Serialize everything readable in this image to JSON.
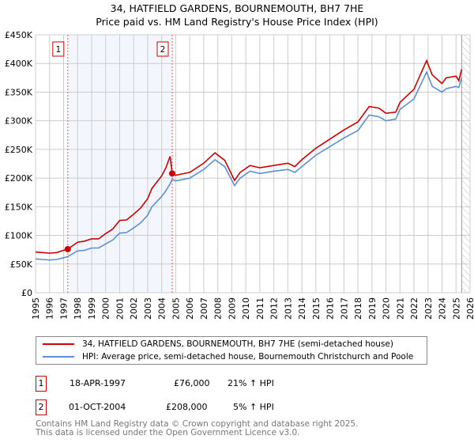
{
  "chart_data": {
    "type": "line",
    "title": "34, HATFIELD GARDENS, BOURNEMOUTH, BH7 7HE",
    "subtitle": "Price paid vs. HM Land Registry's House Price Index (HPI)",
    "xlim": [
      1995,
      2026
    ],
    "ylim": [
      0,
      450000
    ],
    "x_ticks": [
      "1995",
      "1996",
      "1997",
      "1998",
      "1999",
      "2000",
      "2001",
      "2002",
      "2003",
      "2004",
      "2005",
      "2006",
      "2007",
      "2008",
      "2009",
      "2010",
      "2011",
      "2012",
      "2013",
      "2014",
      "2015",
      "2016",
      "2017",
      "2018",
      "2019",
      "2020",
      "2021",
      "2022",
      "2023",
      "2024",
      "2025",
      "2026"
    ],
    "y_ticks": [
      {
        "v": 0,
        "label": "£0"
      },
      {
        "v": 50000,
        "label": "£50K"
      },
      {
        "v": 100000,
        "label": "£100K"
      },
      {
        "v": 150000,
        "label": "£150K"
      },
      {
        "v": 200000,
        "label": "£200K"
      },
      {
        "v": 250000,
        "label": "£250K"
      },
      {
        "v": 300000,
        "label": "£300K"
      },
      {
        "v": 350000,
        "label": "£350K"
      },
      {
        "v": 400000,
        "label": "£400K"
      },
      {
        "v": 450000,
        "label": "£450K"
      }
    ],
    "grid": true,
    "hatched_from": 2025.4,
    "series": [
      {
        "name": "34, HATFIELD GARDENS, BOURNEMOUTH, BH7 7HE (semi-detached house)",
        "color": "#cc0000",
        "x": [
          1995,
          1995.5,
          1996,
          1996.5,
          1997,
          1997.3,
          1998,
          1998.5,
          1999,
          1999.5,
          2000,
          2000.5,
          2001,
          2001.5,
          2002,
          2002.5,
          2003,
          2003.3,
          2004,
          2004.3,
          2004.6,
          2004.75,
          2005,
          2006,
          2007,
          2007.8,
          2008.5,
          2009.2,
          2009.6,
          2010.3,
          2011,
          2012,
          2013,
          2013.5,
          2014,
          2015,
          2016,
          2017,
          2018,
          2018.8,
          2019.5,
          2020,
          2020.7,
          2021,
          2022,
          2022.9,
          2023.3,
          2024,
          2024.3,
          2025,
          2025.2,
          2025.4
        ],
        "y": [
          71,
          70,
          69,
          70,
          74,
          76,
          88,
          90,
          94,
          94,
          103,
          111,
          126,
          127,
          137,
          148,
          164,
          182,
          204,
          218,
          238,
          208,
          205,
          210,
          226,
          244,
          231,
          196,
          210,
          222,
          218,
          222,
          226,
          220,
          232,
          252,
          268,
          284,
          298,
          325,
          322,
          313,
          315,
          332,
          355,
          405,
          380,
          365,
          375,
          378,
          370,
          390
        ]
      },
      {
        "name": "HPI: Average price, semi-detached house, Bournemouth Christchurch and Poole",
        "color": "#5b8fd6",
        "x": [
          1995,
          1995.5,
          1996,
          1996.5,
          1997,
          1997.3,
          1998,
          1998.5,
          1999,
          1999.5,
          2000,
          2000.5,
          2001,
          2001.5,
          2002,
          2002.5,
          2003,
          2003.3,
          2004,
          2004.3,
          2004.6,
          2004.75,
          2005,
          2006,
          2007,
          2007.8,
          2008.5,
          2009.2,
          2009.6,
          2010.3,
          2011,
          2012,
          2013,
          2013.5,
          2014,
          2015,
          2016,
          2017,
          2018,
          2018.8,
          2019.5,
          2020,
          2020.7,
          2021,
          2022,
          2022.9,
          2023.3,
          2024,
          2024.3,
          2025,
          2025.2,
          2025.4
        ],
        "y": [
          59,
          58,
          57,
          58,
          61,
          63,
          73,
          74,
          78,
          78,
          85,
          92,
          104,
          105,
          113,
          122,
          135,
          150,
          168,
          178,
          190,
          198,
          195,
          200,
          215,
          232,
          220,
          187,
          200,
          212,
          208,
          212,
          215,
          210,
          220,
          240,
          255,
          270,
          283,
          310,
          307,
          300,
          303,
          320,
          338,
          385,
          360,
          350,
          356,
          360,
          358,
          375
        ]
      }
    ],
    "y_unit": "thousands",
    "sales": [
      {
        "label": "1",
        "x": 1997.3,
        "price": 76000
      },
      {
        "label": "2",
        "x": 2004.75,
        "price": 208000
      }
    ]
  },
  "sales_table": [
    {
      "num": "1",
      "date": "18-APR-1997",
      "price": "£76,000",
      "hpi": "21% ↑ HPI"
    },
    {
      "num": "2",
      "date": "01-OCT-2004",
      "price": "£208,000",
      "hpi": "5% ↑ HPI"
    }
  ],
  "footer": {
    "line1": "Contains HM Land Registry data © Crown copyright and database right 2025.",
    "line2": "This data is licensed under the Open Government Licence v3.0."
  }
}
